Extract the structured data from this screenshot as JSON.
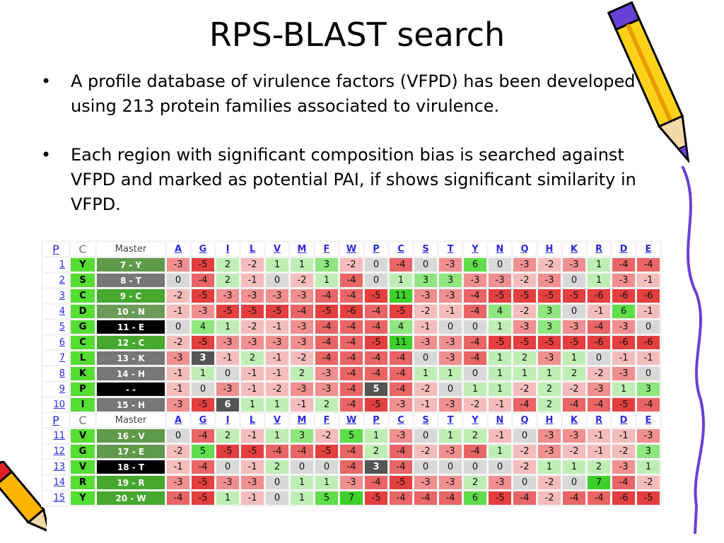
{
  "slide": {
    "title": "RPS-BLAST search",
    "bullets": [
      "A profile database of virulence factors (VFPD) has been developed using 213 protein families associated to virulence.",
      "Each region with significant composition bias is searched against VFPD and marked as potential PAI, if shows significant similarity in VFPD."
    ]
  },
  "table": {
    "header": {
      "p": "P",
      "c": "C",
      "master": "Master"
    },
    "letters": [
      "A",
      "G",
      "I",
      "L",
      "V",
      "M",
      "F",
      "W",
      "P",
      "C",
      "S",
      "T",
      "Y",
      "N",
      "Q",
      "H",
      "K",
      "R",
      "D",
      "E"
    ],
    "rows": [
      {
        "n": "1",
        "c": "Y",
        "m": "7 - Y",
        "mbg": "#5f9a4a",
        "v": [
          "-3",
          "-5",
          "2",
          "-2",
          "1",
          "1",
          "3",
          "-2",
          "0",
          "-4",
          "0",
          "-3",
          "6",
          "0",
          "-3",
          "-2",
          "-3",
          "1",
          "-4",
          "-4"
        ]
      },
      {
        "n": "2",
        "c": "S",
        "m": "8 - T",
        "mbg": "#777777",
        "v": [
          "0",
          "-4",
          "2",
          "-1",
          "0",
          "-2",
          "1",
          "-4",
          "0",
          "1",
          "3",
          "3",
          "-3",
          "-3",
          "-2",
          "-3",
          "0",
          "1",
          "-3",
          "-1"
        ]
      },
      {
        "n": "3",
        "c": "C",
        "m": "9 - C",
        "mbg": "#46a82e",
        "v": [
          "-2",
          "-5",
          "-3",
          "-3",
          "-3",
          "-3",
          "-4",
          "-4",
          "-5",
          "11",
          "-3",
          "-3",
          "-4",
          "-5",
          "-5",
          "-5",
          "-5",
          "-6",
          "-6",
          "-6"
        ]
      },
      {
        "n": "4",
        "c": "D",
        "m": "10 - N",
        "mbg": "#6c9a58",
        "v": [
          "-1",
          "-3",
          "-5",
          "-5",
          "-5",
          "-4",
          "-5",
          "-6",
          "-4",
          "-5",
          "-2",
          "-1",
          "-4",
          "4",
          "-2",
          "3",
          "0",
          "-1",
          "6",
          "-1"
        ]
      },
      {
        "n": "5",
        "c": "G",
        "m": "11 - E",
        "mbg": "#000000",
        "v": [
          "0",
          "4",
          "1",
          "-2",
          "-1",
          "-3",
          "-4",
          "-4",
          "-4",
          "4",
          "-1",
          "0",
          "0",
          "1",
          "-3",
          "3",
          "-3",
          "-4",
          "-3",
          "0"
        ]
      },
      {
        "n": "6",
        "c": "C",
        "m": "12 - C",
        "mbg": "#46a82e",
        "v": [
          "-2",
          "-5",
          "-3",
          "-3",
          "-3",
          "-3",
          "-4",
          "-4",
          "-5",
          "11",
          "-3",
          "-3",
          "-4",
          "-5",
          "-5",
          "-5",
          "-5",
          "-6",
          "-6",
          "-6"
        ]
      },
      {
        "n": "7",
        "c": "L",
        "m": "13 - K",
        "mbg": "#777777",
        "v": [
          "-3",
          "3",
          "-1",
          "2",
          "-1",
          "-2",
          "-4",
          "-4",
          "-4",
          "-4",
          "0",
          "-3",
          "-4",
          "1",
          "2",
          "-3",
          "1",
          "0",
          "-1",
          "-1"
        ]
      },
      {
        "n": "8",
        "c": "K",
        "m": "14 - H",
        "mbg": "#777777",
        "v": [
          "-1",
          "1",
          "0",
          "-1",
          "-1",
          "2",
          "-3",
          "-4",
          "-4",
          "-4",
          "1",
          "1",
          "0",
          "1",
          "1",
          "1",
          "2",
          "-2",
          "-3",
          "0"
        ]
      },
      {
        "n": "9",
        "c": "P",
        "m": "- -",
        "mbg": "#000000",
        "v": [
          "-1",
          "0",
          "-3",
          "-1",
          "-2",
          "-3",
          "-3",
          "-4",
          "5",
          "-4",
          "-2",
          "0",
          "1",
          "1",
          "-2",
          "2",
          "-2",
          "-3",
          "1",
          "3"
        ]
      },
      {
        "n": "10",
        "c": "I",
        "m": "15 - H",
        "mbg": "#777777",
        "v": [
          "-3",
          "-5",
          "6",
          "1",
          "1",
          "-1",
          "2",
          "-4",
          "-5",
          "-3",
          "-1",
          "-3",
          "-2",
          "-1",
          "-4",
          "2",
          "-4",
          "-4",
          "-5",
          "-4"
        ]
      },
      {
        "header": true
      },
      {
        "n": "11",
        "c": "V",
        "m": "16 - V",
        "mbg": "#5f9a4a",
        "v": [
          "0",
          "-4",
          "2",
          "-1",
          "1",
          "3",
          "-2",
          "5",
          "1",
          "-3",
          "0",
          "1",
          "2",
          "-1",
          "0",
          "-3",
          "-3",
          "-1",
          "-1",
          "-3"
        ]
      },
      {
        "n": "12",
        "c": "G",
        "m": "17 - E",
        "mbg": "#5f9a4a",
        "v": [
          "-2",
          "5",
          "-5",
          "-5",
          "-4",
          "-4",
          "-5",
          "-4",
          "2",
          "-4",
          "-2",
          "-3",
          "-4",
          "1",
          "-2",
          "-3",
          "-2",
          "-1",
          "-2",
          "3"
        ]
      },
      {
        "n": "13",
        "c": "V",
        "m": "18 - T",
        "mbg": "#000000",
        "v": [
          "-1",
          "-4",
          "0",
          "-1",
          "2",
          "0",
          "0",
          "-4",
          "3",
          "-4",
          "0",
          "0",
          "0",
          "0",
          "-2",
          "1",
          "1",
          "2",
          "-3",
          "1"
        ]
      },
      {
        "n": "14",
        "c": "R",
        "m": "19 - R",
        "mbg": "#46a82e",
        "v": [
          "-3",
          "-5",
          "-3",
          "-3",
          "0",
          "1",
          "1",
          "-3",
          "-4",
          "-5",
          "-3",
          "-3",
          "2",
          "-3",
          "0",
          "-2",
          "0",
          "7",
          "-4",
          "-2"
        ]
      },
      {
        "n": "15",
        "c": "Y",
        "m": "20 - W",
        "mbg": "#46a82e",
        "v": [
          "-4",
          "-5",
          "1",
          "-1",
          "0",
          "1",
          "5",
          "7",
          "-5",
          "-4",
          "-4",
          "-4",
          "6",
          "-5",
          "-4",
          "-2",
          "-4",
          "-4",
          "-6",
          "-5"
        ]
      }
    ]
  }
}
